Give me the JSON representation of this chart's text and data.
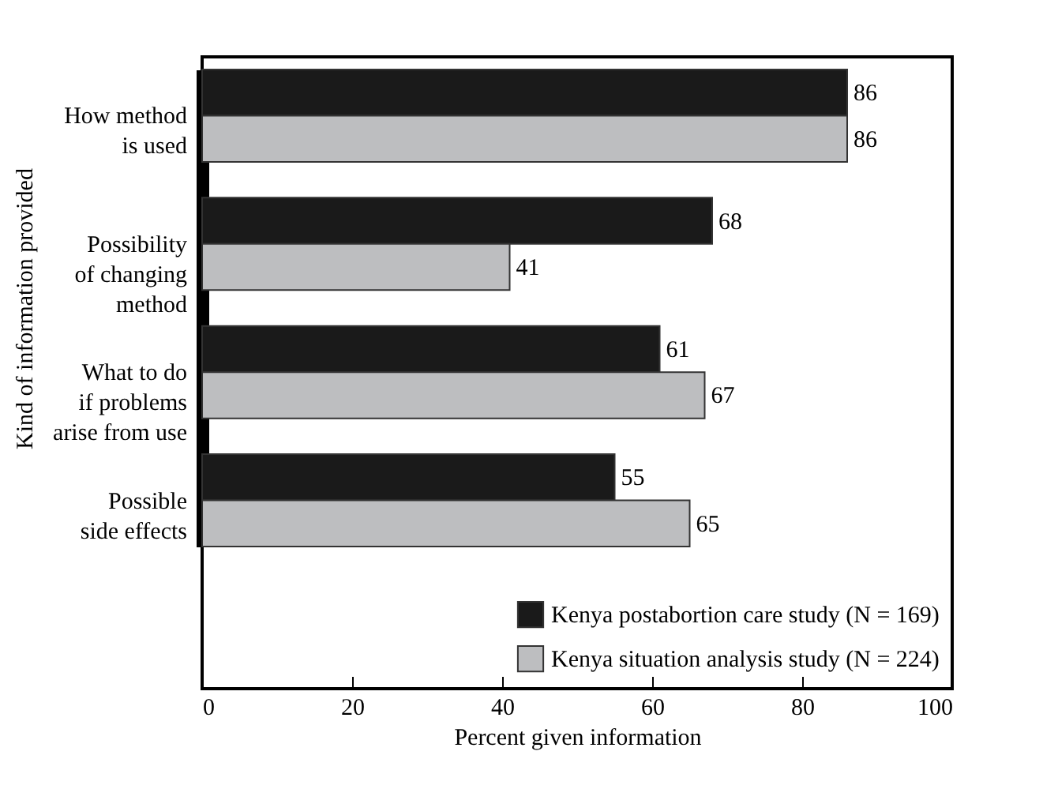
{
  "chart_data": {
    "type": "bar",
    "orientation": "horizontal",
    "xlabel": "Percent given information",
    "ylabel": "Kind of information provided",
    "categories": [
      "How method\nis used",
      "Possibility\nof changing\nmethod",
      "What to do\nif problems\narise from use",
      "Possible\nside effects"
    ],
    "series": [
      {
        "name": "Kenya postabortion care study (N = 169)",
        "color": "#1a1a1a",
        "values": [
          86,
          68,
          61,
          55
        ]
      },
      {
        "name": "Kenya situation analysis study (N = 224)",
        "color": "#bdbec0",
        "values": [
          86,
          41,
          67,
          65
        ]
      }
    ],
    "xlim": [
      0,
      100
    ],
    "xticks": [
      0,
      20,
      40,
      60,
      80,
      100
    ],
    "data_labels": true,
    "legend": "bottom right",
    "grid": false
  }
}
